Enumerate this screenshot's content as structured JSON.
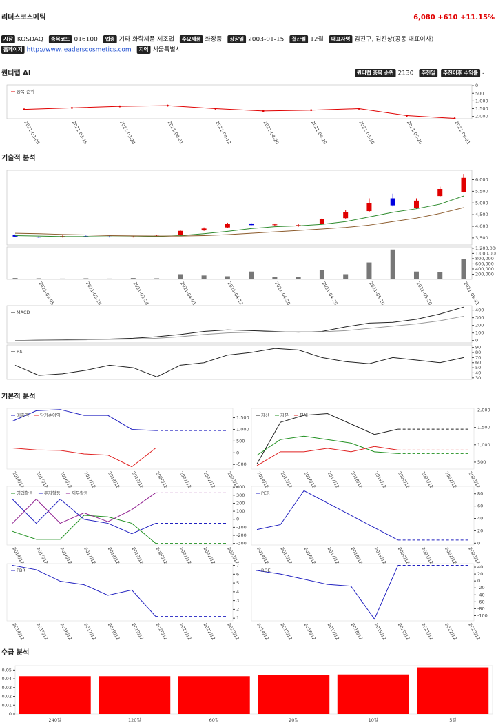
{
  "header": {
    "name": "리더스코스메틱",
    "price": "6,080",
    "change": "+610",
    "change_pct": "+11.15%"
  },
  "info": [
    [
      {
        "label": "시장",
        "value": "KOSDAQ"
      },
      {
        "label": "종목코드",
        "value": "016100"
      },
      {
        "label": "업종",
        "value": "기타 화학제품 제조업"
      },
      {
        "label": "주요제품",
        "value": "화장품"
      },
      {
        "label": "상장일",
        "value": "2003-01-15"
      },
      {
        "label": "결산월",
        "value": "12월"
      },
      {
        "label": "대표자명",
        "value": "김진구, 김진상(공동 대표이사)"
      }
    ],
    [
      {
        "label": "홈페이지",
        "value": "http://www.leaderscosmetics.com"
      },
      {
        "label": "지역",
        "value": "서울특별시"
      }
    ]
  ],
  "sections": [
    "퀀티랩 AI",
    "기술적 분석",
    "기본적 분석",
    "수급 분석"
  ],
  "ai": [
    {
      "label": "퀀티랩 종목 순위",
      "value": "2130"
    },
    {
      "label": "추천일"
    },
    {
      "label": "추천이후 수익률",
      "value": "-"
    }
  ],
  "chart_data": [
    {
      "type": "line",
      "inverted": true,
      "categories": [
        "2021-03-05",
        "2021-03-15",
        "2021-03-24",
        "2021-04-01",
        "2021-04-12",
        "2021-04-20",
        "2021-04-29",
        "2021-05-10",
        "2021-05-20",
        "2021-05-31"
      ],
      "series": [
        {
          "name": "종목 순위",
          "color": "#e00000",
          "values": [
            1550,
            1450,
            1350,
            1300,
            1500,
            1650,
            1600,
            1500,
            1950,
            2130
          ]
        }
      ],
      "ylim": [
        -50,
        2150
      ],
      "yticks": [
        0,
        500,
        {
          "value": 1000,
          "label": "1,000"
        },
        {
          "value": 1500,
          "label": "1,500"
        },
        {
          "value": 2000,
          "label": "2,000"
        }
      ],
      "markers": true
    },
    {
      "type": "candlestick",
      "open": [
        3620,
        3550,
        3540,
        3580,
        3560,
        3540,
        3560,
        3620,
        3820,
        3950,
        4120,
        4050,
        4000,
        4100,
        4350,
        4650,
        5200,
        4800,
        5300,
        5470
      ],
      "close": [
        3560,
        3530,
        3580,
        3560,
        3540,
        3560,
        3600,
        3800,
        3900,
        4100,
        4050,
        4080,
        4050,
        4300,
        4600,
        5000,
        4900,
        5100,
        5600,
        6080
      ],
      "high": [
        3650,
        3580,
        3600,
        3600,
        3590,
        3580,
        3620,
        3850,
        3950,
        4150,
        4150,
        4120,
        4100,
        4350,
        4700,
        5200,
        5400,
        5200,
        5700,
        6250
      ],
      "low": [
        3530,
        3500,
        3520,
        3540,
        3520,
        3520,
        3540,
        3600,
        3800,
        3930,
        4000,
        4020,
        3980,
        4080,
        4330,
        4600,
        4850,
        4750,
        5250,
        5450
      ],
      "up_color": "#e00000",
      "down_color": "#0000e0",
      "series": [
        {
          "color": "#2e8b2e",
          "values": [
            3600,
            3580,
            3560,
            3560,
            3550,
            3550,
            3560,
            3600,
            3680,
            3780,
            3900,
            3980,
            4020,
            4080,
            4200,
            4400,
            4600,
            4750,
            4950,
            5300
          ]
        },
        {
          "color": "#8b5a2b",
          "values": [
            3700,
            3680,
            3650,
            3630,
            3600,
            3590,
            3580,
            3580,
            3600,
            3640,
            3700,
            3760,
            3820,
            3880,
            3950,
            4050,
            4200,
            4350,
            4550,
            4800
          ]
        }
      ],
      "ylim": [
        3200,
        6400
      ],
      "yticks": [
        {
          "value": 3500,
          "label": "3,500"
        },
        {
          "value": 4000,
          "label": "4,000"
        },
        {
          "value": 4500,
          "label": "4,500"
        },
        {
          "value": 5000,
          "label": "5,000"
        },
        {
          "value": 5500,
          "label": "5,500"
        },
        {
          "value": 6000,
          "label": "6,000"
        }
      ]
    },
    {
      "type": "bar",
      "color": "#777777",
      "categories": [
        null,
        "2021-03-05",
        null,
        "2021-03-15",
        null,
        "2021-03-24",
        null,
        "2021-04-01",
        null,
        "2021-04-12",
        null,
        "2021-04-20",
        null,
        "2021-04-29",
        null,
        "2021-05-10",
        null,
        "2021-05-20",
        null,
        "2021-05-31"
      ],
      "values": [
        50000,
        40000,
        30000,
        40000,
        30000,
        50000,
        40000,
        200000,
        150000,
        120000,
        300000,
        100000,
        80000,
        350000,
        200000,
        650000,
        1150000,
        300000,
        280000,
        780000
      ],
      "ylim": [
        0,
        1250000
      ],
      "yticks": [
        {
          "value": 200000,
          "label": "200,000"
        },
        {
          "value": 400000,
          "label": "400,000"
        },
        {
          "value": 600000,
          "label": "600,000"
        },
        {
          "value": 800000,
          "label": "800,000"
        },
        {
          "value": 1000000,
          "label": "1,000,000"
        },
        {
          "value": 1200000,
          "label": "1,200,000"
        }
      ]
    },
    {
      "type": "line",
      "series": [
        {
          "name": "MACD",
          "color": "#222222",
          "values": [
            0,
            5,
            10,
            15,
            20,
            30,
            50,
            80,
            120,
            140,
            130,
            120,
            110,
            120,
            180,
            230,
            240,
            280,
            350,
            440
          ]
        },
        {
          "color": "#999999",
          "values": [
            0,
            3,
            6,
            10,
            15,
            20,
            30,
            50,
            80,
            100,
            110,
            115,
            115,
            115,
            130,
            160,
            190,
            220,
            260,
            320
          ]
        }
      ],
      "ylim": [
        -30,
        460
      ],
      "yticks": [
        0,
        100,
        200,
        300,
        400
      ]
    },
    {
      "type": "line",
      "series": [
        {
          "name": "RSI",
          "color": "#222222",
          "values": [
            55,
            35,
            38,
            45,
            55,
            50,
            32,
            55,
            60,
            75,
            80,
            88,
            85,
            70,
            62,
            58,
            70,
            65,
            60,
            70
          ]
        }
      ],
      "ylim": [
        27,
        95
      ],
      "yticks": [
        30,
        40,
        50,
        60,
        70,
        80,
        90
      ]
    },
    {
      "type": "line",
      "dashed_from": 6,
      "categories": [
        "2014/12",
        "2015/12",
        "2016/12",
        "2017/12",
        "2018/12",
        "2019/12",
        "2020/12",
        "2021/12",
        "2022/12",
        "2023/12"
      ],
      "series": [
        {
          "name": "매출액",
          "color": "#2020c0",
          "values": [
            1350,
            1800,
            1850,
            1600,
            1600,
            1000,
            950,
            950,
            950,
            950
          ]
        },
        {
          "name": "당기순이익",
          "color": "#e02020",
          "values": [
            200,
            120,
            100,
            -50,
            -100,
            -600,
            200,
            200,
            200,
            200
          ]
        }
      ],
      "ylim": [
        -700,
        1900
      ],
      "yticks": [
        -500,
        0,
        500,
        {
          "value": 1000,
          "label": "1,000"
        },
        {
          "value": 1500,
          "label": "1,500"
        }
      ]
    },
    {
      "type": "line",
      "dashed_from": 6,
      "categories": [
        "2014/12",
        "2015/12",
        "2016/12",
        "2017/12",
        "2018/12",
        "2019/12",
        "2020/12",
        "2021/12",
        "2022/12",
        "2023/12"
      ],
      "series": [
        {
          "name": "자산",
          "color": "#222222",
          "values": [
            450,
            1650,
            1850,
            1900,
            1600,
            1300,
            1450,
            1450,
            1450,
            1450
          ]
        },
        {
          "name": "자본",
          "color": "#209020",
          "values": [
            700,
            1150,
            1250,
            1150,
            1050,
            800,
            750,
            750,
            750,
            750
          ]
        },
        {
          "name": "부채",
          "color": "#e02020",
          "values": [
            400,
            800,
            800,
            900,
            800,
            950,
            850,
            850,
            850,
            850
          ]
        }
      ],
      "ylim": [
        300,
        2050
      ],
      "yticks": [
        500,
        {
          "value": 1000,
          "label": "1,000"
        },
        {
          "value": 1500,
          "label": "1,500"
        },
        {
          "value": 2000,
          "label": "2,000"
        }
      ]
    },
    {
      "type": "line",
      "dashed_from": 6,
      "categories": [
        "2014/12",
        "2015/12",
        "2016/12",
        "2017/12",
        "2018/12",
        "2019/12",
        "2020/12",
        "2021/12",
        "2022/12",
        "2023/12"
      ],
      "series": [
        {
          "name": "영업활동",
          "color": "#209020",
          "values": [
            -150,
            -250,
            -250,
            50,
            30,
            -50,
            -300,
            -300,
            -300,
            -300
          ]
        },
        {
          "name": "투자활동",
          "color": "#2020c0",
          "values": [
            250,
            -50,
            250,
            0,
            -50,
            -180,
            -50,
            -50,
            -50,
            -50
          ]
        },
        {
          "name": "재무활동",
          "color": "#902090",
          "values": [
            -50,
            250,
            -50,
            80,
            -30,
            120,
            330,
            330,
            330,
            330
          ]
        }
      ],
      "ylim": [
        -320,
        410
      ],
      "yticks": [
        -300,
        -200,
        -100,
        0,
        100,
        200,
        300,
        400
      ]
    },
    {
      "type": "line",
      "dashed_from": 6,
      "categories": [
        "2014/12",
        "2015/12",
        "2016/12",
        "2017/12",
        "2018/12",
        "2019/12",
        "2020/12",
        "2021/12",
        "2022/12",
        "2023/12"
      ],
      "series": [
        {
          "name": "PER",
          "color": "#2020c0",
          "values": [
            22,
            30,
            85,
            65,
            45,
            25,
            5,
            5,
            5,
            5
          ]
        }
      ],
      "ylim": [
        -3,
        92
      ],
      "yticks": [
        0,
        20,
        40,
        60,
        80
      ]
    },
    {
      "type": "line",
      "dashed_from": 6,
      "categories": [
        "2014/12",
        "2015/12",
        "2016/12",
        "2017/12",
        "2018/12",
        "2019/12",
        "2020/12",
        "2021/12",
        "2022/12",
        "2023/12"
      ],
      "series": [
        {
          "name": "PBR",
          "color": "#2020c0",
          "values": [
            7,
            6.5,
            5.2,
            4.8,
            3.6,
            4.2,
            1.2,
            1.2,
            1.2,
            1.2
          ]
        }
      ],
      "ylim": [
        0.7,
        7.2
      ],
      "yticks": [
        1,
        2,
        3,
        4,
        5,
        6,
        7
      ]
    },
    {
      "type": "line",
      "dashed_from": 6,
      "categories": [
        "2014/12",
        "2015/12",
        "2016/12",
        "2017/12",
        "2018/12",
        "2019/12",
        "2020/12",
        "2021/12",
        "2022/12",
        "2023/12"
      ],
      "series": [
        {
          "name": "ROE",
          "color": "#2020c0",
          "values": [
            30,
            20,
            5,
            -10,
            -15,
            -110,
            45,
            45,
            45,
            45
          ]
        }
      ],
      "ylim": [
        -115,
        50
      ],
      "yticks": [
        -100,
        -80,
        -60,
        -40,
        -20,
        0,
        20,
        40
      ]
    },
    {
      "type": "bar",
      "banded": true,
      "color": "#ff0000",
      "categories": [
        "240일",
        "120일",
        "60일",
        "20일",
        "10일",
        "5일"
      ],
      "values": [
        0.043,
        0.043,
        0.043,
        0.044,
        0.045,
        0.053
      ],
      "ylim": [
        0,
        0.055
      ],
      "yticks": [
        0,
        0.01,
        0.02,
        0.03,
        0.04,
        0.05
      ]
    }
  ]
}
